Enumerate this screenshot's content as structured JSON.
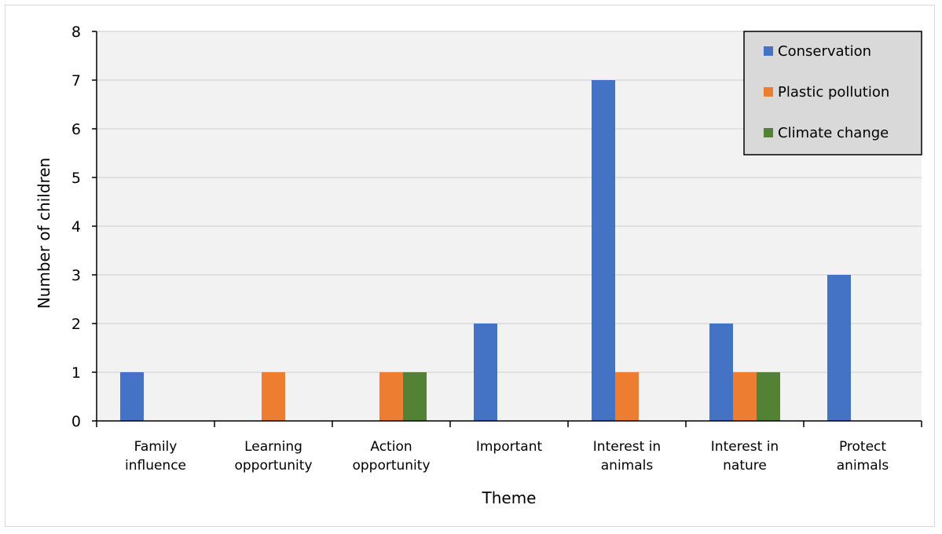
{
  "chart_data": {
    "type": "bar",
    "title": "",
    "xlabel": "Theme",
    "ylabel": "Number of children",
    "ylim": [
      0,
      8
    ],
    "yticks": [
      0,
      1,
      2,
      3,
      4,
      5,
      6,
      7,
      8
    ],
    "grid": true,
    "legend_position": "top-right",
    "categories": [
      [
        "Family",
        "influence"
      ],
      [
        "Learning",
        "opportunity"
      ],
      [
        "Action",
        "opportunity"
      ],
      [
        "Important"
      ],
      [
        "Interest in",
        "animals"
      ],
      [
        "Interest in",
        "nature"
      ],
      [
        "Protect",
        "animals"
      ]
    ],
    "series": [
      {
        "name": "Conservation",
        "color": "#4472C4",
        "values": [
          1,
          0,
          0,
          2,
          7,
          2,
          3
        ]
      },
      {
        "name": "Plastic pollution",
        "color": "#ED7D31",
        "values": [
          0,
          1,
          1,
          0,
          1,
          1,
          0
        ]
      },
      {
        "name": "Climate change",
        "color": "#548235",
        "values": [
          0,
          0,
          1,
          0,
          0,
          1,
          0
        ]
      }
    ]
  },
  "style": {
    "plot_bg": "#F2F2F2",
    "grid_color": "#D9D9D9",
    "legend_bg": "#D9D9D9"
  }
}
